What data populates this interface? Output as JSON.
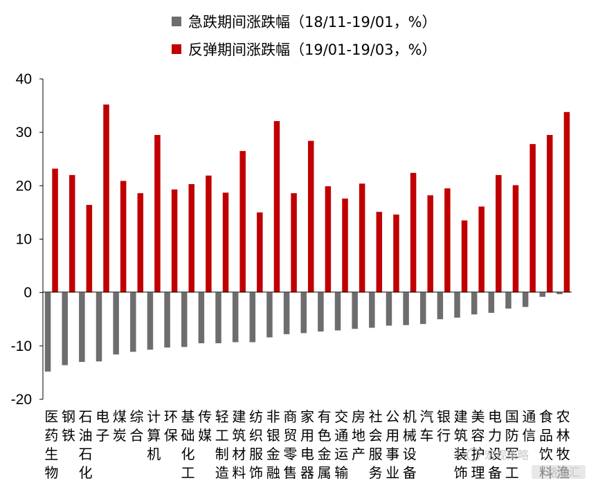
{
  "chart_data": {
    "type": "bar",
    "legend_position": "top",
    "ylim": [
      -20,
      40
    ],
    "yticks": [
      "40",
      "30",
      "20",
      "10",
      "0",
      "-10",
      "-20"
    ],
    "ytick_values": [
      40,
      30,
      20,
      10,
      0,
      -10,
      -20
    ],
    "categories": [
      "医药生物",
      "钢铁",
      "石油石化",
      "电子",
      "煤炭",
      "综合",
      "计算机",
      "环保",
      "基础化工",
      "传媒",
      "轻工制造",
      "建筑材料",
      "纺织服饰",
      "非银金融",
      "商贸零售",
      "家用电器",
      "有色金属",
      "交通运输",
      "房地产",
      "社会服务",
      "公用事业",
      "机械设备",
      "汽车",
      "银行",
      "建筑装饰",
      "美容护理",
      "电力设备",
      "国防军工",
      "通信",
      "食品饮料",
      "农林牧渔"
    ],
    "category_lines": [
      [
        "医",
        "药",
        "生",
        "物"
      ],
      [
        "钢",
        "铁"
      ],
      [
        "石",
        "油",
        "石",
        "化"
      ],
      [
        "电",
        "子"
      ],
      [
        "煤",
        "炭"
      ],
      [
        "综",
        "合"
      ],
      [
        "计",
        "算",
        "机"
      ],
      [
        "环",
        "保"
      ],
      [
        "基",
        "础",
        "化",
        "工"
      ],
      [
        "传",
        "媒"
      ],
      [
        "轻",
        "工",
        "制",
        "造"
      ],
      [
        "建",
        "筑",
        "材",
        "料"
      ],
      [
        "纺",
        "织",
        "服",
        "饰"
      ],
      [
        "非",
        "银",
        "金",
        "融"
      ],
      [
        "商",
        "贸",
        "零",
        "售"
      ],
      [
        "家",
        "用",
        "电",
        "器"
      ],
      [
        "有",
        "色",
        "金",
        "属"
      ],
      [
        "交",
        "通",
        "运",
        "输"
      ],
      [
        "房",
        "地",
        "产"
      ],
      [
        "社",
        "会",
        "服",
        "务"
      ],
      [
        "公",
        "用",
        "事",
        "业"
      ],
      [
        "机",
        "械",
        "设",
        "备"
      ],
      [
        "汽",
        "车"
      ],
      [
        "银",
        "行"
      ],
      [
        "建",
        "筑",
        "装",
        "饰"
      ],
      [
        "美",
        "容",
        "护",
        "理"
      ],
      [
        "电",
        "力",
        "设",
        "备"
      ],
      [
        "国",
        "防",
        "军",
        "工"
      ],
      [
        "通",
        "信"
      ],
      [
        "食",
        "品",
        "饮",
        "料"
      ],
      [
        "农",
        "林",
        "牧",
        "渔"
      ]
    ],
    "series": [
      {
        "name": "急跌期间涨跌幅（18/11-19/01，%）",
        "color": "#6d6d6d",
        "values": [
          -14.8,
          -13.6,
          -13.0,
          -12.9,
          -11.6,
          -11.1,
          -10.7,
          -10.3,
          -10.2,
          -9.5,
          -9.5,
          -9.3,
          -9.3,
          -8.4,
          -7.8,
          -7.6,
          -7.3,
          -7.1,
          -6.8,
          -6.6,
          -6.2,
          -6.1,
          -5.9,
          -5.0,
          -4.7,
          -4.1,
          -3.8,
          -3.0,
          -2.7,
          -0.8,
          -0.3
        ]
      },
      {
        "name": "反弹期间涨跌幅（19/01-19/03，%）",
        "color": "#c00000",
        "values": [
          23.2,
          22.0,
          16.4,
          35.2,
          20.9,
          18.6,
          29.5,
          19.3,
          20.3,
          21.9,
          18.7,
          26.5,
          15.0,
          32.1,
          18.6,
          28.4,
          19.9,
          17.6,
          20.4,
          15.1,
          14.6,
          22.4,
          18.2,
          19.5,
          13.5,
          16.1,
          22.0,
          20.1,
          27.8,
          29.5,
          33.8
        ]
      }
    ]
  },
  "watermark": {
    "line": "宏观策略",
    "badge": "格隆汇"
  }
}
